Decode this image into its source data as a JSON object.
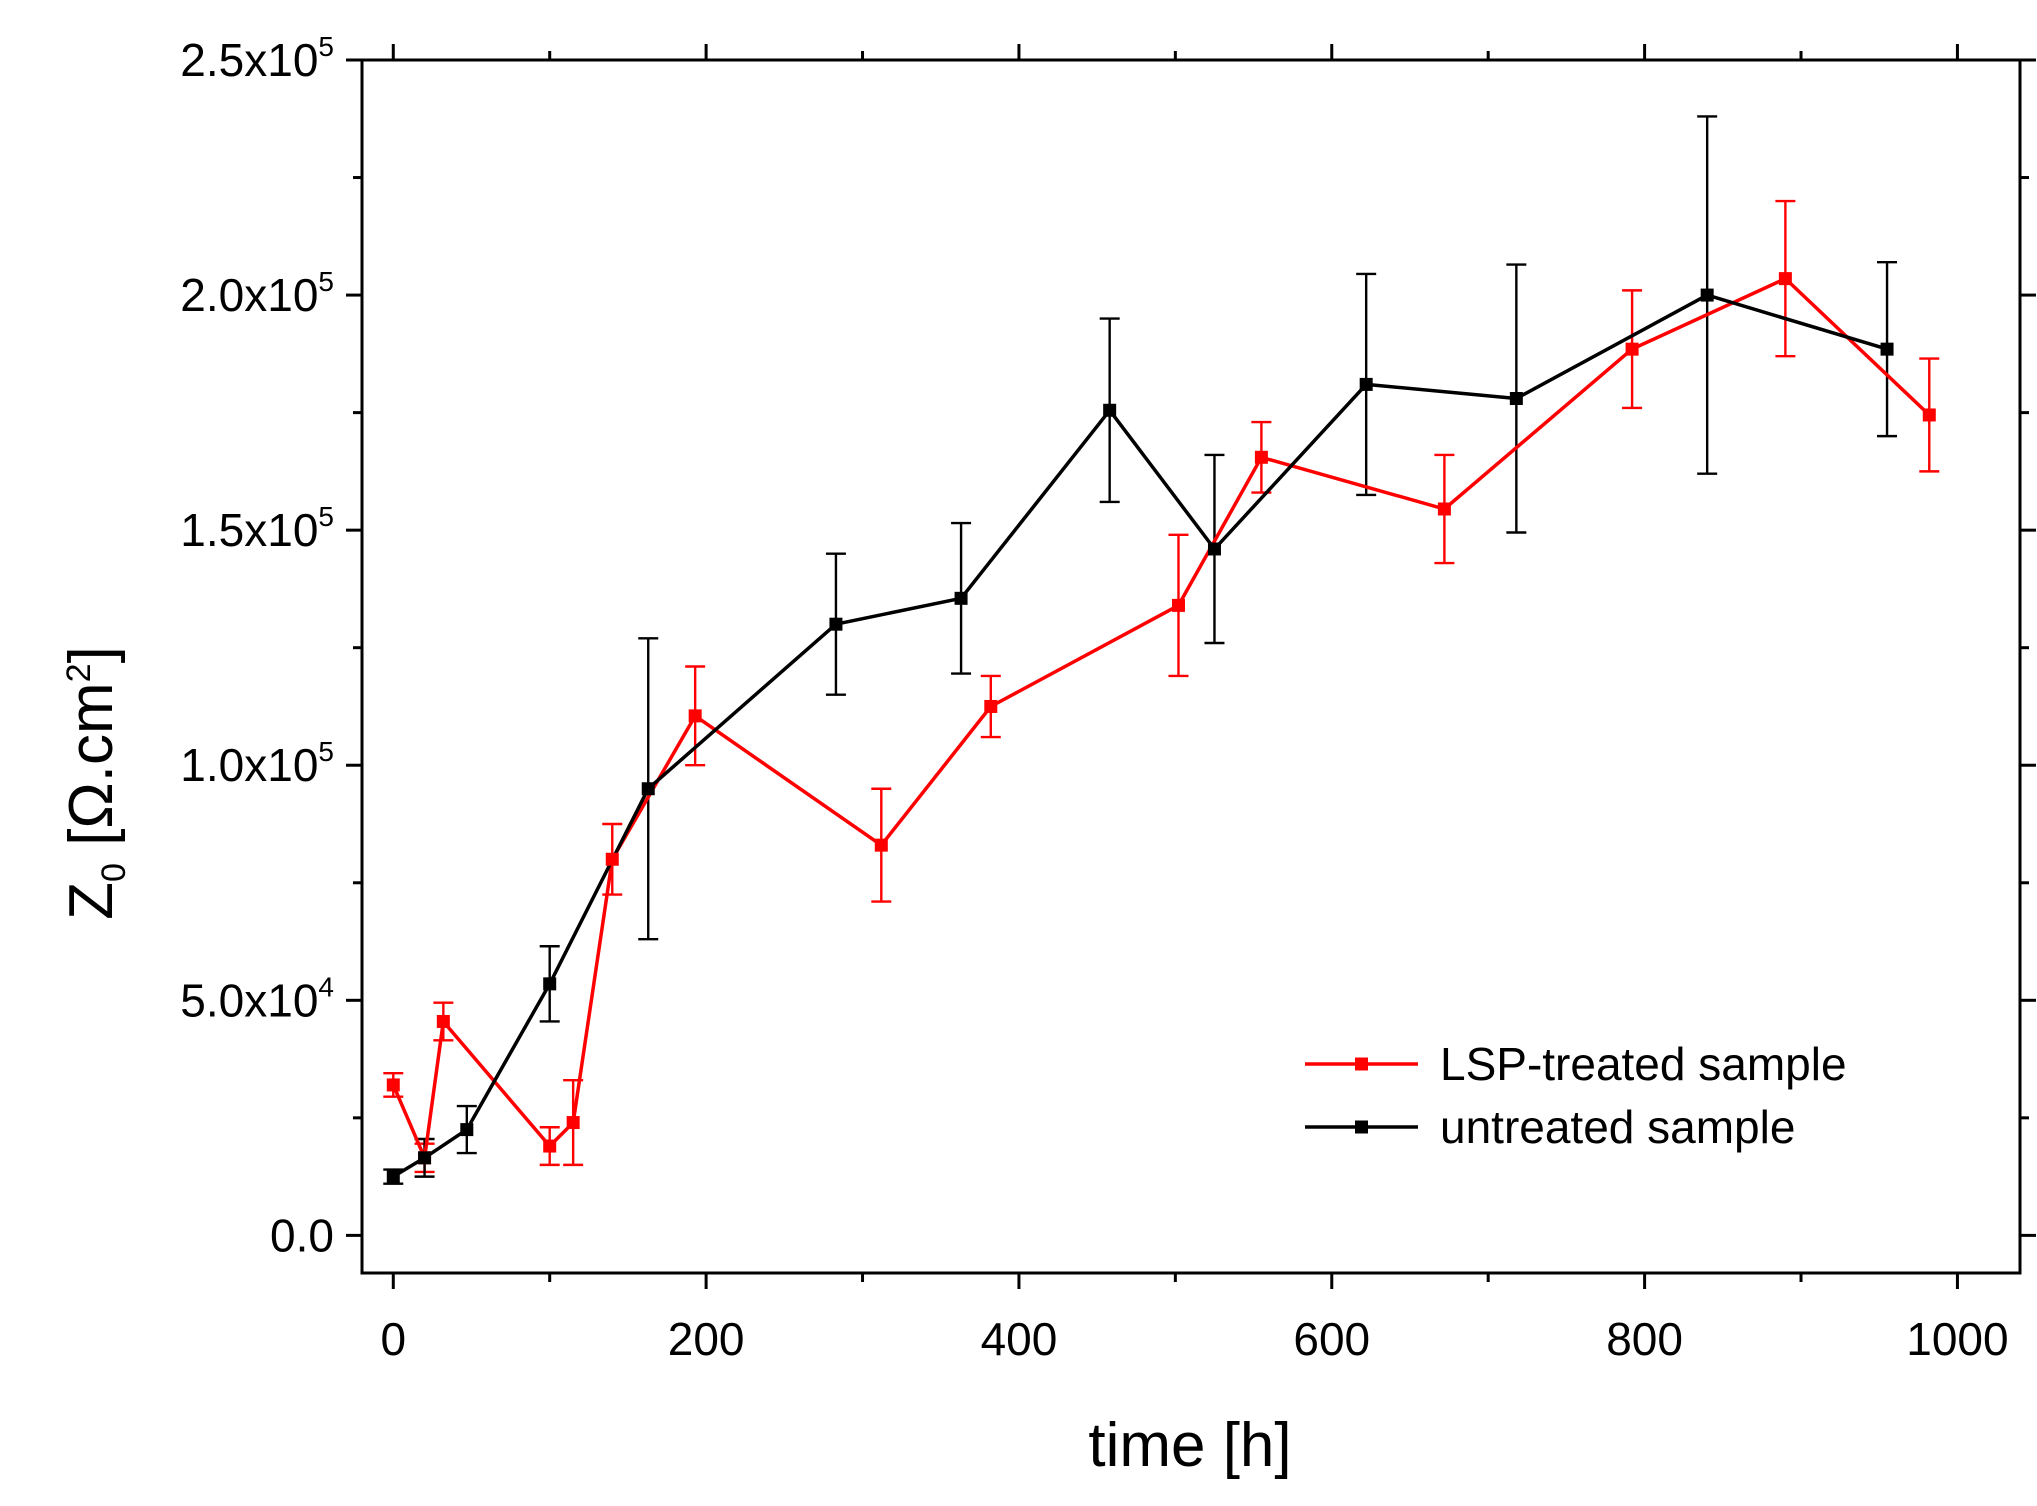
{
  "chart_data": {
    "type": "line",
    "xlabel": "time [h]",
    "ylabel": {
      "main": "Z",
      "subscript": "0",
      "unit_prefix": " [Ω.cm",
      "unit_superscript": "2",
      "unit_suffix": "]"
    },
    "xlim": [
      -20,
      1040
    ],
    "ylim": [
      -8000,
      250000
    ],
    "x_ticks": [
      0,
      200,
      400,
      600,
      800,
      1000
    ],
    "x_tick_labels": [
      "0",
      "200",
      "400",
      "600",
      "800",
      "1000"
    ],
    "y_ticks": [
      0,
      50000,
      100000,
      150000,
      200000,
      250000
    ],
    "y_tick_labels": [
      {
        "text": "0.0",
        "exp": ""
      },
      {
        "text": "5.0x10",
        "exp": "4"
      },
      {
        "text": "1.0x10",
        "exp": "5"
      },
      {
        "text": "1.5x10",
        "exp": "5"
      },
      {
        "text": "2.0x10",
        "exp": "5"
      },
      {
        "text": "2.5x10",
        "exp": "5"
      }
    ],
    "legend_position": "bottom-right",
    "grid": false,
    "series": [
      {
        "name": "LSP-treated sample",
        "color": "#ff0000",
        "marker": "square",
        "x": [
          0,
          20,
          32,
          100,
          115,
          140,
          193,
          312,
          382,
          502,
          555,
          672,
          792,
          890,
          982
        ],
        "y": [
          32000,
          16500,
          45500,
          19000,
          24000,
          80000,
          110500,
          83000,
          112500,
          134000,
          165500,
          154500,
          188500,
          203500,
          174500
        ],
        "err": [
          2500,
          3000,
          4000,
          4000,
          9000,
          7500,
          10500,
          12000,
          6500,
          15000,
          7500,
          11500,
          12500,
          16500,
          12000
        ]
      },
      {
        "name": "untreated sample",
        "color": "#000000",
        "marker": "square",
        "x": [
          0,
          20,
          47,
          100,
          163,
          283,
          363,
          458,
          525,
          622,
          718,
          840,
          955
        ],
        "y": [
          12500,
          16500,
          22500,
          53500,
          95000,
          130000,
          135500,
          175500,
          146000,
          181000,
          178000,
          200000,
          188500
        ],
        "err": [
          1500,
          4000,
          5000,
          8000,
          32000,
          15000,
          16000,
          19500,
          20000,
          23500,
          28500,
          38000,
          18500
        ]
      }
    ]
  }
}
